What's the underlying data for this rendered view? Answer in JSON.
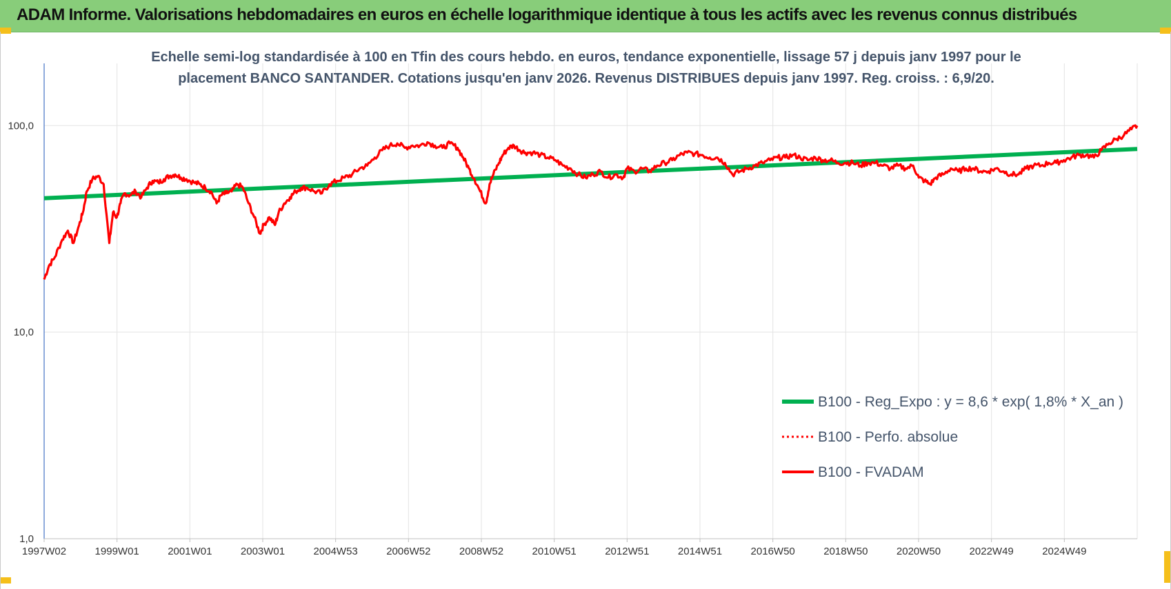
{
  "page": {
    "title": "ADAM Informe. Valorisations hebdomadaires en euros en échelle logarithmique identique à tous les actifs avec les revenus connus distribués"
  },
  "colors": {
    "banner": "#88cd7a",
    "trend": "#00b050",
    "price": "#ff0000",
    "corner": "#f5bf1b"
  },
  "chart_data": {
    "type": "line",
    "subtitle_line1": "Echelle semi-log standardisée à 100 en Tfin des cours hebdo. en euros, tendance exponentielle, lissage 57 j depuis janv 1997 pour le",
    "subtitle_line2": "placement BANCO SANTANDER.  Cotations jusqu'en janv 2026. Revenus DISTRIBUES depuis janv 1997.  Reg. croiss. : 6,9/20.",
    "y_scale": "log",
    "ylim": [
      1,
      200
    ],
    "y_ticks": [
      "1,0",
      "10,0",
      "100,0"
    ],
    "x_range": [
      1997.02,
      2026.05
    ],
    "x_ticks": [
      "1997W02",
      "1999W01",
      "2001W01",
      "2003W01",
      "2004W53",
      "2006W52",
      "2008W52",
      "2010W51",
      "2012W51",
      "2014W51",
      "2016W50",
      "2018W50",
      "2020W50",
      "2022W49",
      "2024W49"
    ],
    "grid": true,
    "legend_position": "bottom-right",
    "series": [
      {
        "name": "B100 - Reg_Expo : y = 8,6 * exp( 1,8% *  X_an )",
        "style": "solid-thick",
        "color": "#00b050",
        "x": [
          1997.02,
          2026.05
        ],
        "y": [
          44.5,
          77.0
        ]
      },
      {
        "name": "B100 - Perfo. absolue",
        "style": "dotted",
        "color": "#ff0000",
        "x": [],
        "y": []
      },
      {
        "name": "B100 - FVADAM",
        "style": "solid",
        "color": "#ff0000",
        "x": [
          1997.02,
          1997.15,
          1997.3,
          1997.5,
          1997.65,
          1997.8,
          1997.95,
          1998.05,
          1998.15,
          1998.3,
          1998.45,
          1998.6,
          1998.75,
          1998.85,
          1998.95,
          1999.05,
          1999.15,
          1999.3,
          1999.45,
          1999.6,
          1999.75,
          1999.9,
          2000.05,
          2000.2,
          2000.35,
          2000.5,
          2000.65,
          2000.8,
          2001.0,
          2001.15,
          2001.3,
          2001.45,
          2001.6,
          2001.72,
          2001.85,
          2002.0,
          2002.15,
          2002.3,
          2002.45,
          2002.6,
          2002.75,
          2002.85,
          2003.0,
          2003.15,
          2003.25,
          2003.4,
          2003.55,
          2003.7,
          2003.85,
          2004.0,
          2004.2,
          2004.4,
          2004.6,
          2004.8,
          2005.0,
          2005.2,
          2005.4,
          2005.6,
          2005.8,
          2006.0,
          2006.2,
          2006.4,
          2006.6,
          2006.8,
          2007.0,
          2007.2,
          2007.4,
          2007.6,
          2007.8,
          2008.0,
          2008.15,
          2008.3,
          2008.45,
          2008.6,
          2008.75,
          2008.85,
          2008.95,
          2009.1,
          2009.2,
          2009.35,
          2009.5,
          2009.65,
          2009.8,
          2010.0,
          2010.2,
          2010.4,
          2010.6,
          2010.8,
          2011.0,
          2011.2,
          2011.4,
          2011.6,
          2011.8,
          2012.0,
          2012.2,
          2012.4,
          2012.5,
          2012.7,
          2012.9,
          2013.1,
          2013.3,
          2013.5,
          2013.7,
          2013.9,
          2014.1,
          2014.3,
          2014.5,
          2014.7,
          2014.9,
          2015.1,
          2015.3,
          2015.5,
          2015.7,
          2015.9,
          2016.1,
          2016.3,
          2016.5,
          2016.7,
          2016.9,
          2017.1,
          2017.3,
          2017.5,
          2017.7,
          2017.9,
          2018.1,
          2018.3,
          2018.5,
          2018.7,
          2018.9,
          2019.1,
          2019.3,
          2019.5,
          2019.7,
          2019.9,
          2020.1,
          2020.25,
          2020.4,
          2020.55,
          2020.7,
          2020.9,
          2021.1,
          2021.3,
          2021.5,
          2021.7,
          2021.9,
          2022.1,
          2022.3,
          2022.5,
          2022.7,
          2022.9,
          2023.1,
          2023.3,
          2023.5,
          2023.7,
          2023.9,
          2024.1,
          2024.3,
          2024.5,
          2024.7,
          2024.9,
          2025.1,
          2025.3,
          2025.5,
          2025.7,
          2025.9,
          2026.05
        ],
        "y": [
          18,
          21,
          23,
          28,
          31,
          27,
          33,
          38,
          48,
          55,
          57,
          52,
          27,
          38,
          36,
          42,
          47,
          46,
          48,
          45,
          50,
          54,
          53,
          55,
          57,
          58,
          56,
          55,
          53,
          52,
          50,
          48,
          42,
          46,
          47,
          48,
          52,
          50,
          42,
          36,
          30,
          33,
          36,
          33,
          38,
          42,
          45,
          48,
          50,
          50,
          48,
          47,
          52,
          54,
          56,
          58,
          62,
          64,
          70,
          76,
          80,
          82,
          78,
          80,
          80,
          83,
          80,
          78,
          82,
          78,
          70,
          62,
          55,
          48,
          42,
          52,
          58,
          66,
          72,
          78,
          80,
          76,
          74,
          74,
          72,
          70,
          68,
          64,
          62,
          58,
          56,
          58,
          60,
          56,
          58,
          56,
          62,
          60,
          62,
          60,
          64,
          66,
          68,
          72,
          74,
          73,
          72,
          70,
          70,
          66,
          58,
          60,
          62,
          64,
          66,
          68,
          70,
          70,
          72,
          70,
          68,
          70,
          68,
          68,
          66,
          66,
          66,
          64,
          66,
          66,
          64,
          62,
          64,
          62,
          64,
          56,
          54,
          52,
          56,
          58,
          62,
          60,
          62,
          62,
          60,
          60,
          62,
          60,
          58,
          58,
          62,
          64,
          64,
          66,
          66,
          68,
          70,
          72,
          72,
          70,
          76,
          82,
          86,
          90,
          96,
          100
        ]
      }
    ]
  }
}
